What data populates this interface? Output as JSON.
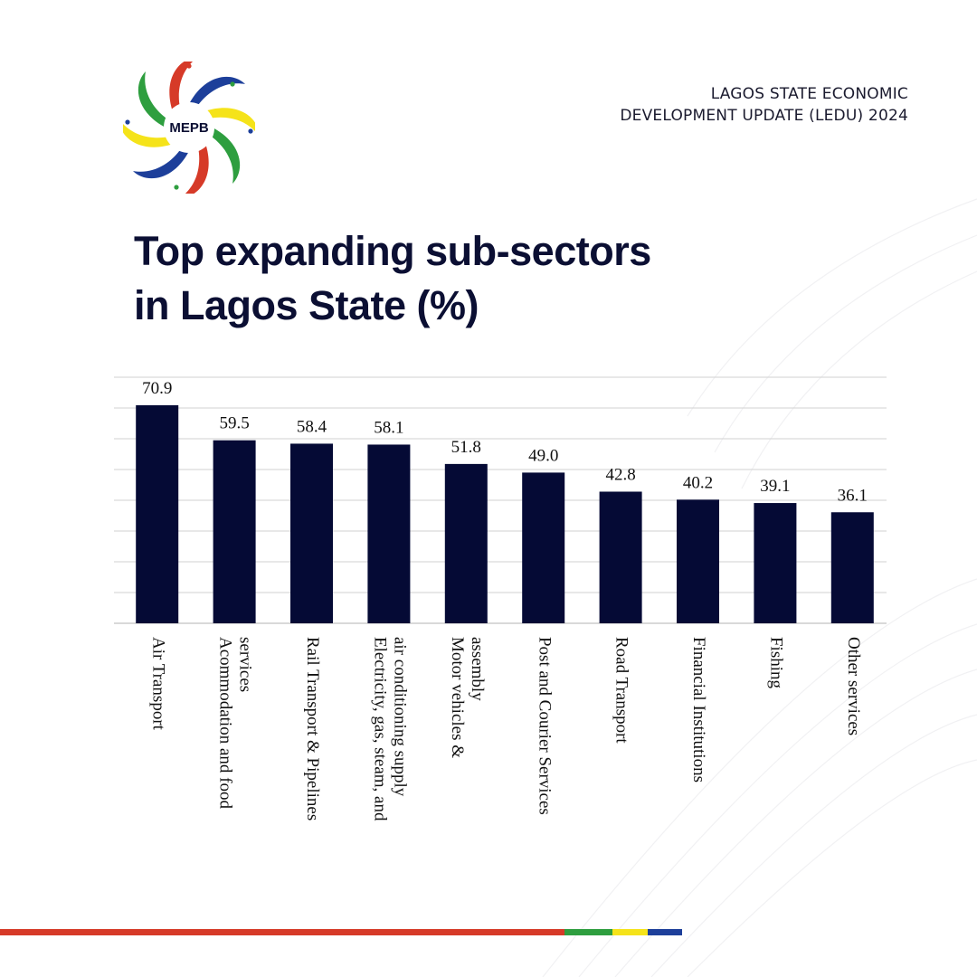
{
  "brand": {
    "logo_text": "MEPB",
    "header_line1": "LAGOS STATE ECONOMIC",
    "header_line2": "DEVELOPMENT UPDATE (LEDU) 2024"
  },
  "colors": {
    "navy": "#050a35",
    "red": "#d63a28",
    "green": "#2e9e3f",
    "yellow": "#f5e31a",
    "blue": "#1d3f9a",
    "grid": "#d9d9d9"
  },
  "chart_data": {
    "type": "bar",
    "title_line1": "Top expanding sub-sectors",
    "title_line2": "in Lagos State (%)",
    "categories": [
      [
        "Air Transport"
      ],
      [
        "Acommodation and food",
        "services"
      ],
      [
        "Rail Transport & Pipelines"
      ],
      [
        "Electricity, gas, steam, and",
        "air conditioning supply"
      ],
      [
        "Motor vehicles &",
        "assembly"
      ],
      [
        "Post and Courier Services"
      ],
      [
        "Road Transport"
      ],
      [
        "Financial Institutions"
      ],
      [
        "Fishing"
      ],
      [
        "Other services"
      ]
    ],
    "values": [
      70.9,
      59.5,
      58.4,
      58.1,
      51.8,
      49.0,
      42.8,
      40.2,
      39.1,
      36.1
    ],
    "value_labels": [
      "70.9",
      "59.5",
      "58.4",
      "58.1",
      "51.8",
      "49.0",
      "42.8",
      "40.2",
      "39.1",
      "36.1"
    ],
    "ylim": [
      0,
      80
    ],
    "grid": true,
    "grid_step": 10
  }
}
